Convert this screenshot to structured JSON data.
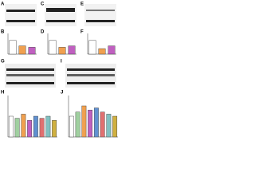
{
  "panels": [
    {
      "letter": "A"
    },
    {
      "letter": "C"
    },
    {
      "letter": "E"
    },
    {
      "letter": "B",
      "chart": {
        "type": "bar",
        "values": [
          1,
          0.6,
          0.5
        ],
        "colors": [
          "#ffffff",
          "#f0a050",
          "#c060c0"
        ],
        "ylim": [
          0,
          1.5
        ]
      }
    },
    {
      "letter": "D",
      "chart": {
        "type": "bar",
        "values": [
          1,
          0.5,
          0.6
        ],
        "colors": [
          "#ffffff",
          "#f0a050",
          "#c060c0"
        ],
        "ylim": [
          0,
          1.5
        ]
      }
    },
    {
      "letter": "F",
      "chart": {
        "type": "bar",
        "values": [
          1,
          0.4,
          0.6
        ],
        "colors": [
          "#ffffff",
          "#f0a050",
          "#c060c0"
        ],
        "ylim": [
          0,
          1.5
        ]
      }
    },
    {
      "letter": "G"
    },
    {
      "letter": "I"
    },
    {
      "letter": "H",
      "chart": {
        "type": "bar",
        "values": [
          1,
          0.9,
          1.1,
          0.8,
          1,
          0.9,
          1,
          0.8
        ],
        "colors": [
          "#ffffff",
          "#a0d0a0",
          "#f0a050",
          "#c060c0",
          "#6090d0",
          "#e07070",
          "#80c0c0",
          "#d0b040"
        ],
        "ylim": [
          0,
          2
        ]
      }
    },
    {
      "letter": "J",
      "chart": {
        "type": "bar",
        "values": [
          1,
          1.2,
          1.5,
          1.3,
          1.4,
          1.2,
          1.1,
          1
        ],
        "colors": [
          "#ffffff",
          "#a0d0a0",
          "#f0a050",
          "#c060c0",
          "#6090d0",
          "#e07070",
          "#80c0c0",
          "#d0b040"
        ],
        "ylim": [
          0,
          2
        ]
      }
    }
  ]
}
